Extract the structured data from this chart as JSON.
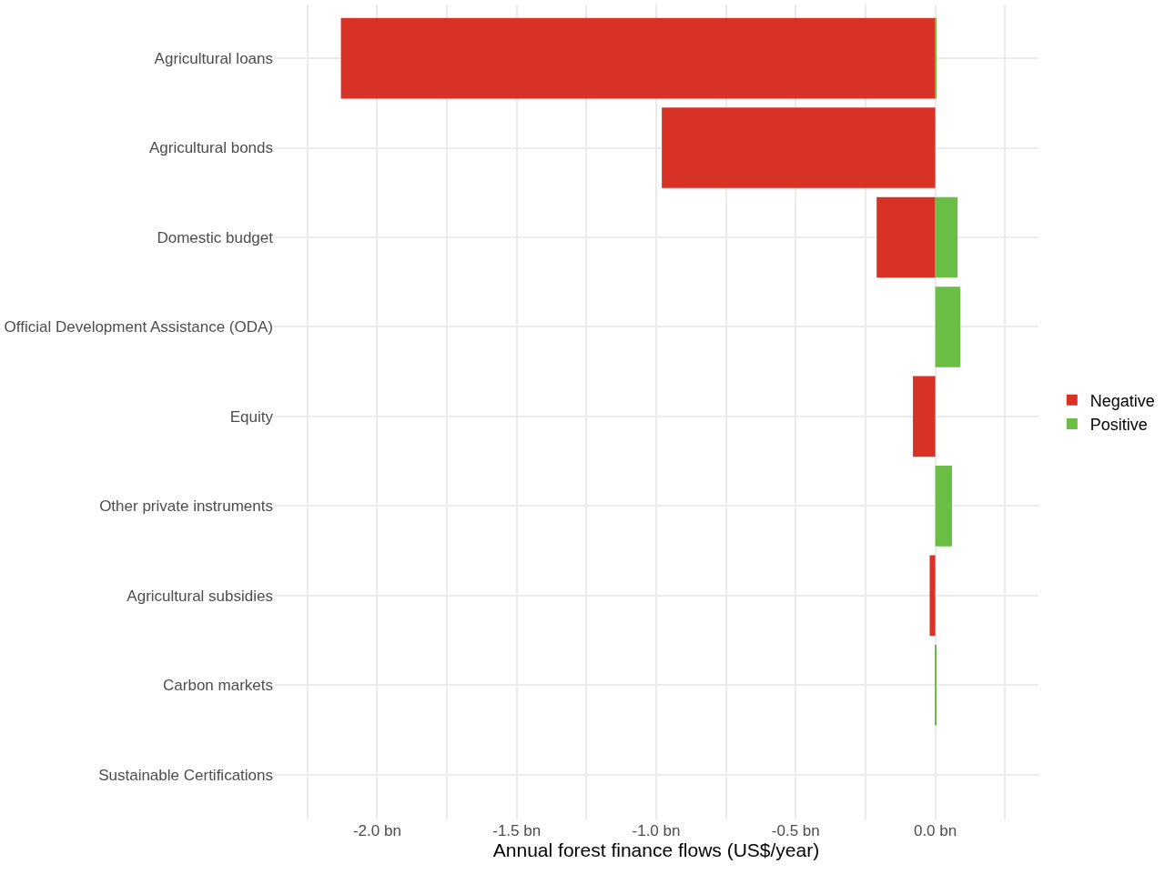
{
  "chart_data": {
    "type": "bar",
    "orientation": "horizontal",
    "stacked": true,
    "xlabel": "Annual forest finance flows (US$/year)",
    "categories": [
      "Agricultural loans",
      "Agricultural bonds",
      "Domestic budget",
      "Official Development Assistance (ODA)",
      "Equity",
      "Other private instruments",
      "Agricultural subsidies",
      "Carbon markets",
      "Sustainable Certifications"
    ],
    "series": [
      {
        "name": "Negative",
        "color": "#d83126",
        "values": [
          -2.13,
          -0.98,
          -0.21,
          null,
          -0.08,
          null,
          -0.02,
          null,
          null
        ]
      },
      {
        "name": "Positive",
        "color": "#6abd45",
        "values": [
          0.005,
          null,
          0.08,
          0.09,
          null,
          0.06,
          null,
          0.003,
          null
        ]
      }
    ],
    "xlim": [
      -2.37,
      0.37
    ],
    "xticks": [
      {
        "value": -2.25,
        "label": null
      },
      {
        "value": -2.0,
        "label": "-2.0 bn"
      },
      {
        "value": -1.75,
        "label": null
      },
      {
        "value": -1.5,
        "label": "-1.5 bn"
      },
      {
        "value": -1.25,
        "label": null
      },
      {
        "value": -1.0,
        "label": "-1.0 bn"
      },
      {
        "value": -0.75,
        "label": null
      },
      {
        "value": -0.5,
        "label": "-0.5 bn"
      },
      {
        "value": -0.25,
        "label": null
      },
      {
        "value": 0.0,
        "label": "0.0 bn"
      },
      {
        "value": 0.25,
        "label": null
      }
    ],
    "grid": true,
    "legend": "right"
  }
}
